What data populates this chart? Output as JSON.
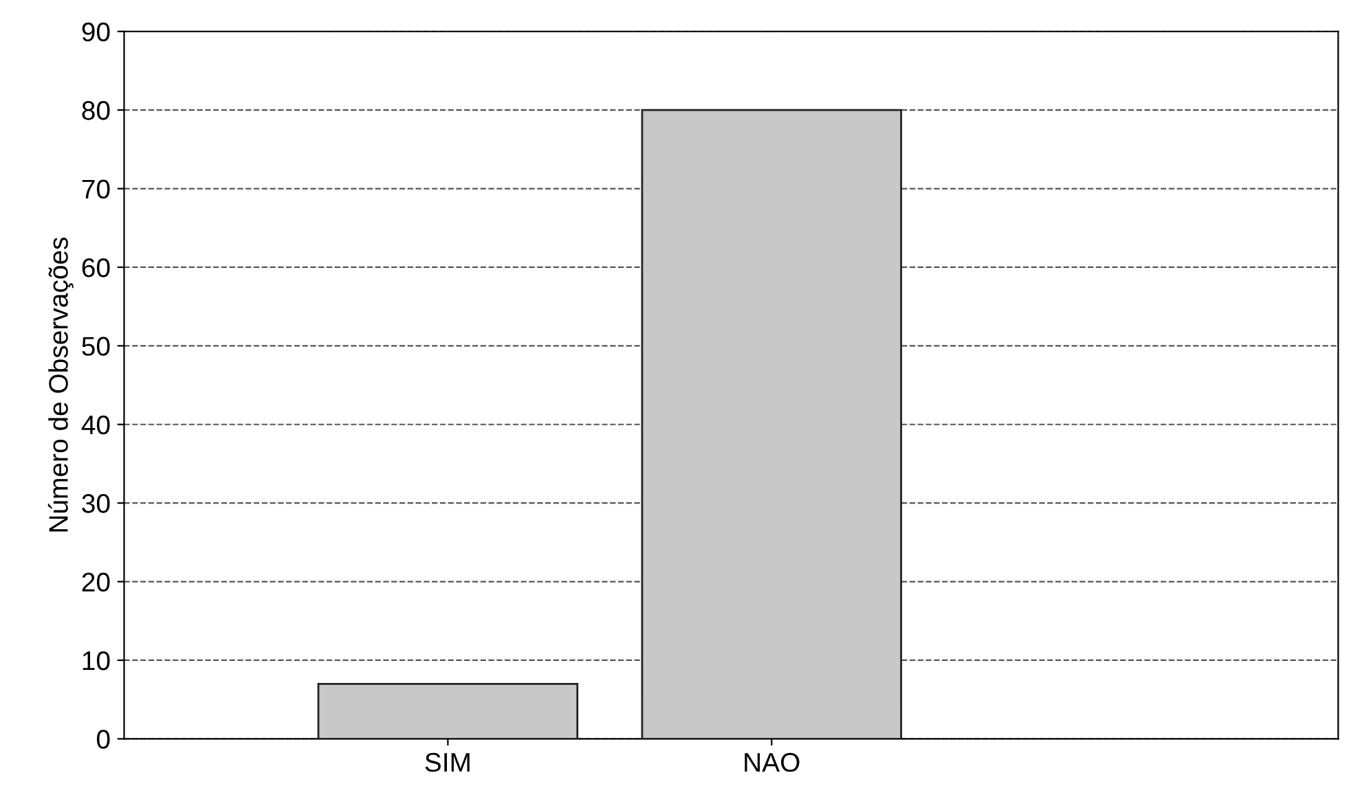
{
  "chart_data": {
    "type": "bar",
    "ylabel": "Número de Observações",
    "categories": [
      "SIM",
      "NAO"
    ],
    "values": [
      7,
      80
    ],
    "color": "#c8c8c8",
    "ylim": [
      0,
      90
    ],
    "yticks": [
      0,
      10,
      20,
      30,
      40,
      50,
      60,
      70,
      80,
      90
    ],
    "grid": "y"
  }
}
